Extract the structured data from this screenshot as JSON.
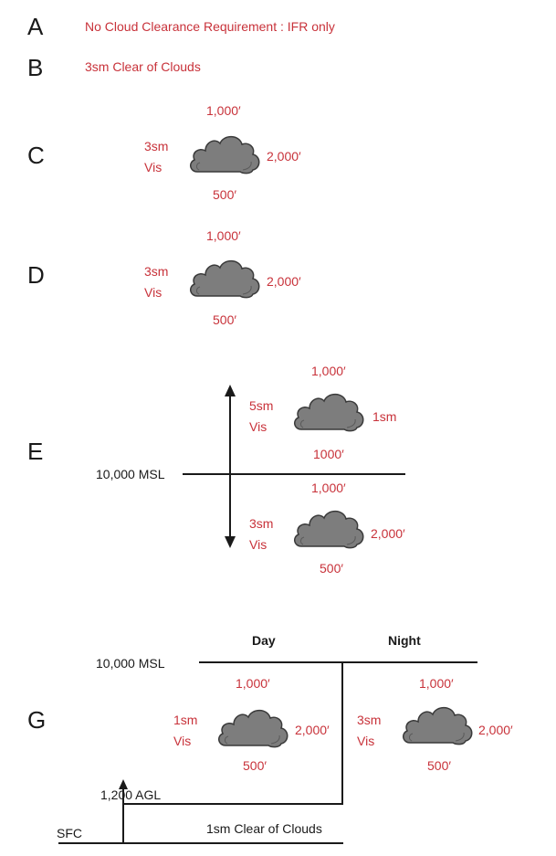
{
  "row_a": {
    "letter": "A",
    "text": "No Cloud Clearance Requirement : IFR only"
  },
  "row_b": {
    "letter": "B",
    "text": "3sm Clear of Clouds"
  },
  "row_c": {
    "letter": "C",
    "above": "1,000′",
    "vis_1": "3sm",
    "vis_2": "Vis",
    "right": "2,000′",
    "below": "500′"
  },
  "row_d": {
    "letter": "D",
    "above": "1,000′",
    "vis_1": "3sm",
    "vis_2": "Vis",
    "right": "2,000′",
    "below": "500′"
  },
  "row_e": {
    "letter": "E",
    "altitude_label": "10,000 MSL",
    "upper": {
      "above": "1,000′",
      "vis_1": "5sm",
      "vis_2": "Vis",
      "right": "1sm",
      "below": "1000′"
    },
    "lower": {
      "above": "1,000′",
      "vis_1": "3sm",
      "vis_2": "Vis",
      "right": "2,000′",
      "below": "500′"
    }
  },
  "row_g": {
    "letter": "G",
    "day_header": "Day",
    "night_header": "Night",
    "altitude_label": "10,000 MSL",
    "agl_label": "1,200 AGL",
    "sfc_label": "SFC",
    "surface_text": "1sm Clear of Clouds",
    "day": {
      "above": "1,000′",
      "vis_1": "1sm",
      "vis_2": "Vis",
      "right": "2,000′",
      "below": "500′"
    },
    "night": {
      "above": "1,000′",
      "vis_1": "3sm",
      "vis_2": "Vis",
      "right": "2,000′",
      "below": "500′"
    }
  },
  "colors": {
    "requirement_text": "#c8323a",
    "cloud_fill": "#7d7d7d",
    "line": "#1a1a1a"
  },
  "icons": {
    "cloud": "cloud-icon",
    "arrow_up": "arrow-up-icon",
    "arrow_down": "arrow-down-icon"
  }
}
